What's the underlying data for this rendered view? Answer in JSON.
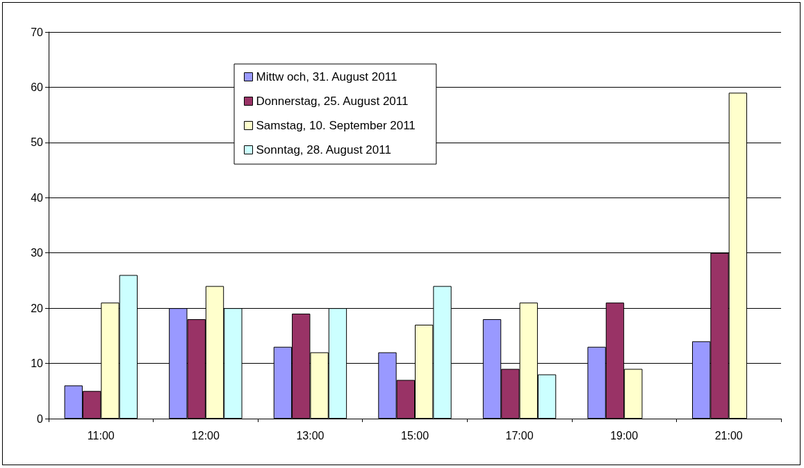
{
  "chart_data": {
    "type": "bar",
    "categories": [
      "11:00",
      "12:00",
      "13:00",
      "15:00",
      "17:00",
      "19:00",
      "21:00"
    ],
    "series": [
      {
        "name": "Mittw och, 31. August 2011",
        "color": "#9999ff",
        "values": [
          6,
          20,
          13,
          12,
          18,
          13,
          14
        ]
      },
      {
        "name": "Donnerstag, 25. August 2011",
        "color": "#993366",
        "values": [
          5,
          18,
          19,
          7,
          9,
          21,
          30
        ]
      },
      {
        "name": "Samstag, 10. September 2011",
        "color": "#ffffcc",
        "values": [
          21,
          24,
          12,
          17,
          21,
          9,
          59
        ]
      },
      {
        "name": "Sonntag, 28. August 2011",
        "color": "#ccffff",
        "values": [
          26,
          20,
          20,
          24,
          8,
          null,
          null
        ]
      }
    ],
    "ylim": [
      0,
      70
    ],
    "yticks": [
      0,
      10,
      20,
      30,
      40,
      50,
      60,
      70
    ],
    "grid": "y",
    "legend": "top"
  }
}
